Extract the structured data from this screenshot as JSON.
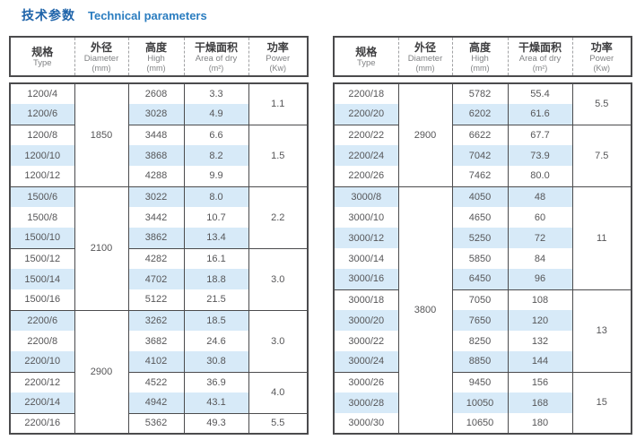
{
  "title": {
    "zh": "技术参数",
    "en": "Technical parameters"
  },
  "header": {
    "type": {
      "zh": "规格",
      "en": "Type"
    },
    "diameter": {
      "zh": "外径",
      "en": "Diameter",
      "unit": "(mm)"
    },
    "high": {
      "zh": "高度",
      "en": "High",
      "unit": "(mm)"
    },
    "area": {
      "zh": "干燥面积",
      "en": "Area of dry",
      "unit": "(m²)"
    },
    "power": {
      "zh": "功率",
      "en": "Power",
      "unit": "(Kw)"
    }
  },
  "colors": {
    "stripe": "#d7eaf8",
    "border": "#4b4b4d",
    "dash": "#a0a1a3",
    "title_zh": "#1e63a9",
    "title_en": "#2b7dc0",
    "header_text": "#3d3d3f",
    "subtext": "#808284",
    "text": "#565658"
  },
  "tables": [
    {
      "rows": [
        {
          "type": "1200/4",
          "high": "2608",
          "area": "3.3"
        },
        {
          "type": "1200/6",
          "high": "3028",
          "area": "4.9"
        },
        {
          "type": "1200/8",
          "high": "3448",
          "area": "6.6"
        },
        {
          "type": "1200/10",
          "high": "3868",
          "area": "8.2"
        },
        {
          "type": "1200/12",
          "high": "4288",
          "area": "9.9"
        },
        {
          "type": "1500/6",
          "high": "3022",
          "area": "8.0"
        },
        {
          "type": "1500/8",
          "high": "3442",
          "area": "10.7"
        },
        {
          "type": "1500/10",
          "high": "3862",
          "area": "13.4"
        },
        {
          "type": "1500/12",
          "high": "4282",
          "area": "16.1"
        },
        {
          "type": "1500/14",
          "high": "4702",
          "area": "18.8"
        },
        {
          "type": "1500/16",
          "high": "5122",
          "area": "21.5"
        },
        {
          "type": "2200/6",
          "high": "3262",
          "area": "18.5"
        },
        {
          "type": "2200/8",
          "high": "3682",
          "area": "24.6"
        },
        {
          "type": "2200/10",
          "high": "4102",
          "area": "30.8"
        },
        {
          "type": "2200/12",
          "high": "4522",
          "area": "36.9"
        },
        {
          "type": "2200/14",
          "high": "4942",
          "area": "43.1"
        },
        {
          "type": "2200/16",
          "high": "5362",
          "area": "49.3"
        }
      ],
      "diameter_groups": [
        {
          "value": "1850",
          "span": 5
        },
        {
          "value": "2100",
          "span": 6
        },
        {
          "value": "2900",
          "span": 6
        }
      ],
      "power_groups": [
        {
          "value": "1.1",
          "span": 2
        },
        {
          "value": "1.5",
          "span": 3
        },
        {
          "value": "2.2",
          "span": 3
        },
        {
          "value": "3.0",
          "span": 3
        },
        {
          "value": "3.0",
          "span": 3
        },
        {
          "value": "4.0",
          "span": 2
        },
        {
          "value": "5.5",
          "span": 1
        }
      ]
    },
    {
      "rows": [
        {
          "type": "2200/18",
          "high": "5782",
          "area": "55.4"
        },
        {
          "type": "2200/20",
          "high": "6202",
          "area": "61.6"
        },
        {
          "type": "2200/22",
          "high": "6622",
          "area": "67.7"
        },
        {
          "type": "2200/24",
          "high": "7042",
          "area": "73.9"
        },
        {
          "type": "2200/26",
          "high": "7462",
          "area": "80.0"
        },
        {
          "type": "3000/8",
          "high": "4050",
          "area": "48"
        },
        {
          "type": "3000/10",
          "high": "4650",
          "area": "60"
        },
        {
          "type": "3000/12",
          "high": "5250",
          "area": "72"
        },
        {
          "type": "3000/14",
          "high": "5850",
          "area": "84"
        },
        {
          "type": "3000/16",
          "high": "6450",
          "area": "96"
        },
        {
          "type": "3000/18",
          "high": "7050",
          "area": "108"
        },
        {
          "type": "3000/20",
          "high": "7650",
          "area": "120"
        },
        {
          "type": "3000/22",
          "high": "8250",
          "area": "132"
        },
        {
          "type": "3000/24",
          "high": "8850",
          "area": "144"
        },
        {
          "type": "3000/26",
          "high": "9450",
          "area": "156"
        },
        {
          "type": "3000/28",
          "high": "10050",
          "area": "168"
        },
        {
          "type": "3000/30",
          "high": "10650",
          "area": "180"
        }
      ],
      "diameter_groups": [
        {
          "value": "2900",
          "span": 5
        },
        {
          "value": "3800",
          "span": 12
        }
      ],
      "power_groups": [
        {
          "value": "5.5",
          "span": 2
        },
        {
          "value": "7.5",
          "span": 3
        },
        {
          "value": "11",
          "span": 5
        },
        {
          "value": "13",
          "span": 4
        },
        {
          "value": "15",
          "span": 3
        }
      ]
    }
  ]
}
